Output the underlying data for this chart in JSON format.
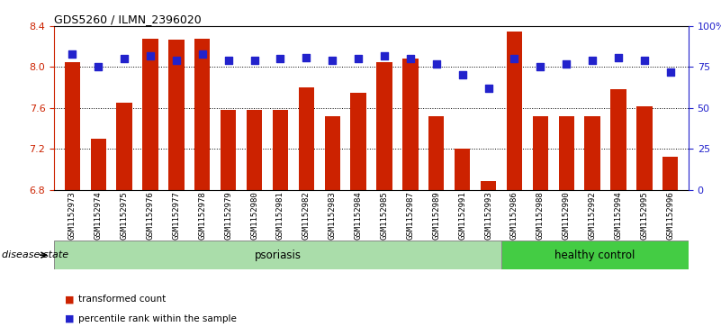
{
  "title": "GDS5260 / ILMN_2396020",
  "samples": [
    "GSM1152973",
    "GSM1152974",
    "GSM1152975",
    "GSM1152976",
    "GSM1152977",
    "GSM1152978",
    "GSM1152979",
    "GSM1152980",
    "GSM1152981",
    "GSM1152982",
    "GSM1152983",
    "GSM1152984",
    "GSM1152985",
    "GSM1152987",
    "GSM1152989",
    "GSM1152991",
    "GSM1152993",
    "GSM1152986",
    "GSM1152988",
    "GSM1152990",
    "GSM1152992",
    "GSM1152994",
    "GSM1152995",
    "GSM1152996"
  ],
  "bar_values": [
    8.05,
    7.3,
    7.65,
    8.28,
    8.27,
    8.28,
    7.58,
    7.58,
    7.58,
    7.8,
    7.52,
    7.75,
    8.05,
    8.08,
    7.52,
    7.2,
    6.88,
    8.35,
    7.52,
    7.52,
    7.52,
    7.78,
    7.62,
    7.12
  ],
  "percentile_values": [
    83,
    75,
    80,
    82,
    79,
    83,
    79,
    79,
    80,
    81,
    79,
    80,
    82,
    80,
    77,
    70,
    62,
    80,
    75,
    77,
    79,
    81,
    79,
    72
  ],
  "psoriasis_count": 17,
  "healthy_count": 7,
  "ylim_left": [
    6.8,
    8.4
  ],
  "ylim_right": [
    0,
    100
  ],
  "yticks_left": [
    6.8,
    7.2,
    7.6,
    8.0,
    8.4
  ],
  "yticks_right": [
    0,
    25,
    50,
    75,
    100
  ],
  "ytick_labels_right": [
    "0",
    "25",
    "50",
    "75",
    "100%"
  ],
  "bar_color": "#cc2200",
  "dot_color": "#2222cc",
  "psoriasis_color": "#aaddaa",
  "healthy_color": "#44cc44",
  "bar_width": 0.6,
  "dot_size": 30,
  "grid_color": "black",
  "grid_style": "dotted",
  "legend_bar_label": "transformed count",
  "legend_dot_label": "percentile rank within the sample",
  "disease_state_label": "disease state",
  "psoriasis_label": "psoriasis",
  "healthy_label": "healthy control",
  "xtick_bg_color": "#cccccc",
  "band_border_color": "#888888"
}
